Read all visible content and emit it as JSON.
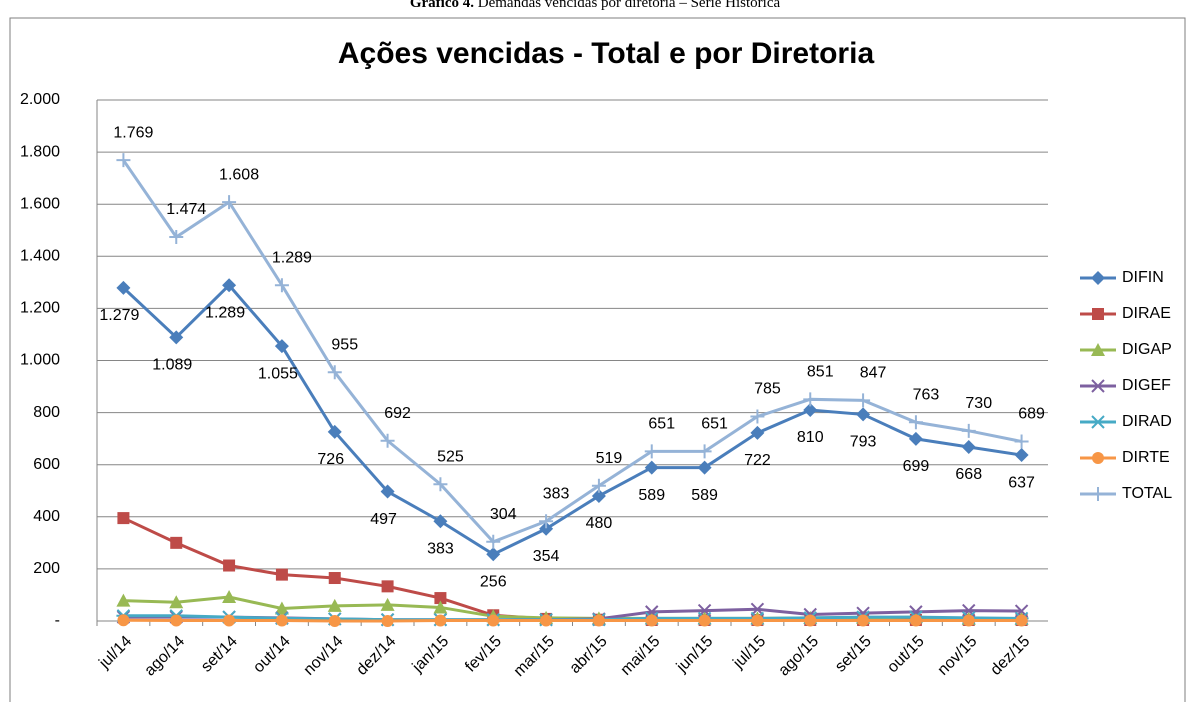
{
  "caption": {
    "label": "Gráfico 4.",
    "text": "Demandas vencidas por diretoria – Série Histórica"
  },
  "chart_data": {
    "type": "line",
    "title": "Ações vencidas - Total e por Diretoria",
    "categories": [
      "jul/14",
      "ago/14",
      "set/14",
      "out/14",
      "nov/14",
      "dez/14",
      "jan/15",
      "fev/15",
      "mar/15",
      "abr/15",
      "mai/15",
      "jun/15",
      "jul/15",
      "ago/15",
      "set/15",
      "out/15",
      "nov/15",
      "dez/15"
    ],
    "ylim": [
      0,
      2000
    ],
    "yticks": [
      {
        "value": 0,
        "label": "-"
      },
      200,
      400,
      600,
      800,
      {
        "value": 1000,
        "label": "1.000"
      },
      {
        "value": 1200,
        "label": "1.200"
      },
      {
        "value": 1400,
        "label": "1.400"
      },
      {
        "value": 1600,
        "label": "1.600"
      },
      {
        "value": 1800,
        "label": "1.800"
      },
      {
        "value": 2000,
        "label": "2.000"
      }
    ],
    "grid": true,
    "legend": "right",
    "series": [
      {
        "name": "DIFIN",
        "color": "#4a7ebb",
        "marker": "diamond",
        "values": [
          1279,
          1089,
          1289,
          1055,
          726,
          497,
          383,
          256,
          354,
          480,
          589,
          589,
          722,
          810,
          793,
          699,
          668,
          637
        ],
        "value_labels": [
          "1.279",
          "1.089",
          "1.289",
          "1.055",
          "726",
          "497",
          "383",
          "256",
          "354",
          "480",
          "589",
          "589",
          "722",
          "810",
          "793",
          "699",
          "668",
          "637"
        ]
      },
      {
        "name": "DIRAE",
        "color": "#be4b48",
        "marker": "square",
        "values": [
          395,
          300,
          213,
          178,
          165,
          133,
          88,
          22,
          8,
          5,
          4,
          4,
          4,
          4,
          4,
          4,
          4,
          4
        ]
      },
      {
        "name": "DIGAP",
        "color": "#98b954",
        "marker": "triangle",
        "values": [
          78,
          72,
          92,
          48,
          58,
          62,
          52,
          18,
          12,
          10,
          10,
          10,
          10,
          12,
          12,
          15,
          8,
          8
        ]
      },
      {
        "name": "DIGEF",
        "color": "#7d60a0",
        "marker": "x",
        "values": [
          15,
          15,
          15,
          12,
          8,
          5,
          5,
          5,
          5,
          8,
          35,
          40,
          45,
          25,
          30,
          35,
          40,
          38
        ]
      },
      {
        "name": "DIRAD",
        "color": "#46aac5",
        "marker": "star",
        "values": [
          20,
          20,
          15,
          10,
          8,
          5,
          5,
          5,
          5,
          5,
          10,
          10,
          10,
          12,
          15,
          15,
          12,
          10
        ]
      },
      {
        "name": "DIRTE",
        "color": "#f79646",
        "marker": "circle",
        "values": [
          3,
          2,
          2,
          2,
          0,
          0,
          2,
          2,
          2,
          2,
          2,
          2,
          2,
          2,
          2,
          2,
          2,
          2
        ]
      },
      {
        "name": "TOTAL",
        "color": "#95b3d7",
        "marker": "plus",
        "values": [
          1769,
          1474,
          1608,
          1289,
          955,
          692,
          525,
          304,
          383,
          519,
          651,
          651,
          785,
          851,
          847,
          763,
          730,
          689
        ],
        "value_labels": [
          "1.769",
          "1.474",
          "1.608",
          "1.289",
          "955",
          "692",
          "525",
          "304",
          "383",
          "519",
          "651",
          "651",
          "785",
          "851",
          "847",
          "763",
          "730",
          "689"
        ]
      }
    ]
  }
}
